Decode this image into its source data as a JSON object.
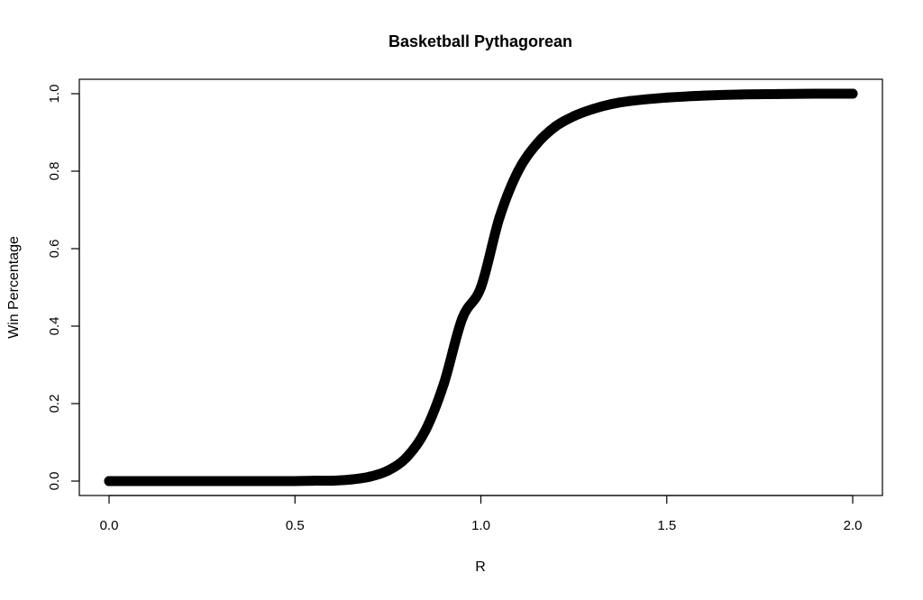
{
  "chart_data": {
    "type": "scatter",
    "title": "Basketball Pythagorean",
    "xlabel": "R",
    "ylabel": "Win Percentage",
    "xlim": [
      0,
      2
    ],
    "ylim": [
      0,
      1
    ],
    "x_ticks": [
      0,
      0.5,
      1,
      1.5,
      2
    ],
    "x_tick_labels": [
      "0.0",
      "0.5",
      "1.0",
      "1.5",
      "2.0"
    ],
    "y_ticks": [
      0,
      0.2,
      0.4,
      0.6,
      0.8,
      1
    ],
    "y_tick_labels": [
      "0.0",
      "0.2",
      "0.4",
      "0.6",
      "0.8",
      "1.0"
    ],
    "grid": false,
    "series": [
      {
        "color": "#000000",
        "x": [
          0,
          0.1,
          0.2,
          0.3,
          0.4,
          0.5,
          0.55,
          0.6,
          0.65,
          0.7,
          0.75,
          0.8,
          0.85,
          0.9,
          0.95,
          1.0,
          1.05,
          1.1,
          1.15,
          1.2,
          1.25,
          1.3,
          1.35,
          1.4,
          1.5,
          1.6,
          1.7,
          1.8,
          1.9,
          2.0
        ],
        "y": [
          0,
          0,
          0,
          0,
          0,
          0,
          0.001,
          0.001,
          0.004,
          0.011,
          0.027,
          0.061,
          0.129,
          0.25,
          0.42,
          0.5,
          0.68,
          0.8,
          0.87,
          0.915,
          0.942,
          0.96,
          0.973,
          0.981,
          0.99,
          0.995,
          0.998,
          0.999,
          1,
          1
        ]
      }
    ]
  }
}
